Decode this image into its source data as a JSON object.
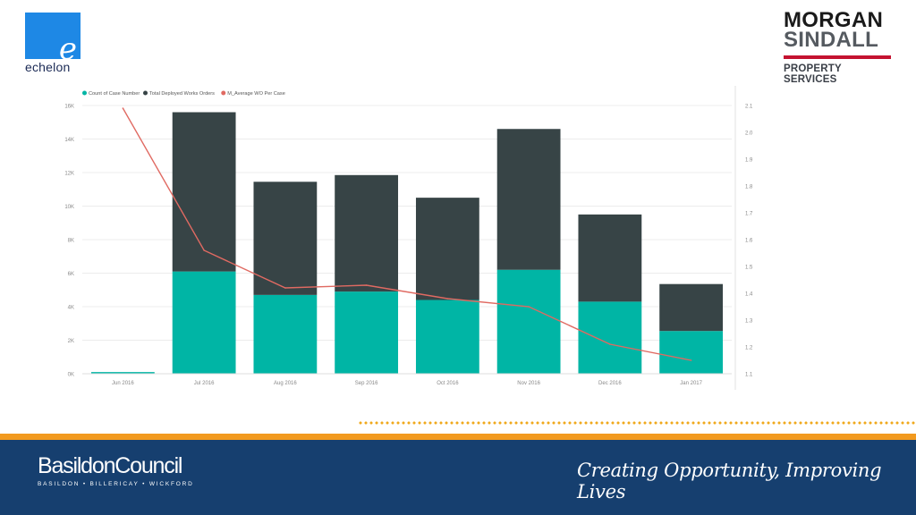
{
  "logos": {
    "echelon": {
      "letter": "e",
      "word": "echelon",
      "color": "#1e88e5"
    },
    "morgan_sindall": {
      "line1": "MORGAN",
      "line2": "SINDALL",
      "line3": "PROPERTY SERVICES",
      "accent": "#c41230"
    }
  },
  "footer": {
    "council_name": "BasildonCouncil",
    "council_sub": "BASILDON • BILLERICAY • WICKFORD",
    "slogan": "Creating Opportunity, Improving Lives",
    "band_color": "#163f6f",
    "stripe_color": "#f29a1f"
  },
  "chart_data": {
    "type": "bar",
    "stacked": true,
    "categories": [
      "Jun 2016",
      "Jul 2016",
      "Aug 2016",
      "Sep 2016",
      "Oct 2016",
      "Nov 2016",
      "Dec 2016",
      "Jan 2017"
    ],
    "series": [
      {
        "name": "Count of Case Number",
        "type": "bar",
        "axis": "left",
        "color": "#00b5a5",
        "values": [
          100,
          6100,
          4700,
          4900,
          4400,
          6200,
          4300,
          2550
        ]
      },
      {
        "name": "Total Deployed Works Orders",
        "type": "bar",
        "axis": "left",
        "color": "#374446",
        "values": [
          0,
          9500,
          6750,
          6950,
          6100,
          8400,
          5200,
          2800
        ]
      },
      {
        "name": "M_Average WO Per Case",
        "type": "line",
        "axis": "right",
        "color": "#e06a62",
        "values": [
          2.09,
          1.56,
          1.42,
          1.43,
          1.38,
          1.35,
          1.21,
          1.15
        ]
      }
    ],
    "left_axis": {
      "min": 0,
      "max": 16000,
      "ticks": [
        "0K",
        "2K",
        "4K",
        "6K",
        "8K",
        "10K",
        "12K",
        "14K",
        "16K"
      ]
    },
    "right_axis": {
      "min": 1.1,
      "max": 2.1,
      "ticks": [
        "1.1",
        "1.2",
        "1.3",
        "1.4",
        "1.5",
        "1.6",
        "1.7",
        "1.8",
        "1.9",
        "2.0",
        "2.1"
      ]
    },
    "legend_position": "top-left",
    "grid": true
  }
}
